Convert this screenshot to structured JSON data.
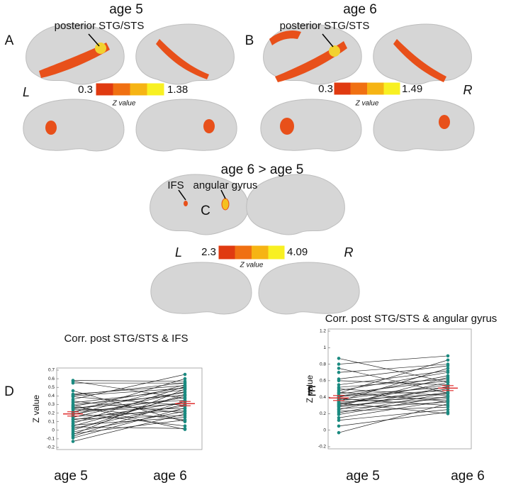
{
  "panel_a": {
    "letter": "A",
    "title": "age 5",
    "region": "posterior STG/STS",
    "hemi_left": "L",
    "colorbar": {
      "min": 0.3,
      "max": 1.38,
      "label": "Z value"
    }
  },
  "panel_b": {
    "letter": "B",
    "title": "age 6",
    "region": "posterior STG/STS",
    "hemi_right": "R",
    "colorbar": {
      "min": 0.3,
      "max": 1.49,
      "label": "Z value"
    }
  },
  "panel_c": {
    "letter": "C",
    "title": "age 6 > age 5",
    "regions": [
      "IFS",
      "angular gyrus"
    ],
    "hemi_left": "L",
    "hemi_right": "R",
    "colorbar": {
      "min": 2.3,
      "max": 4.09,
      "label": "Z value"
    }
  },
  "chart_data": [
    {
      "type": "paired",
      "letter": "D",
      "title": "Corr. post STG/STS & IFS",
      "ylabel": "Z value",
      "categories": [
        "age 5",
        "age 6"
      ],
      "ylim": [
        -0.2,
        0.7
      ],
      "yticks": [
        -0.2,
        -0.1,
        0,
        0.1,
        0.2,
        0.3,
        0.4,
        0.5,
        0.6,
        0.7
      ],
      "point_color": "#1b8a80",
      "line_color": "#222222",
      "mean_color": "#e03030",
      "subjects": [
        [
          0.58,
          0.57
        ],
        [
          0.57,
          0.37
        ],
        [
          0.55,
          0.55
        ],
        [
          0.46,
          0.1
        ],
        [
          0.42,
          0.52
        ],
        [
          0.41,
          0.55
        ],
        [
          0.4,
          0.49
        ],
        [
          0.39,
          0.29
        ],
        [
          0.36,
          0.65
        ],
        [
          0.34,
          0.2
        ],
        [
          0.32,
          0.47
        ],
        [
          0.3,
          0.41
        ],
        [
          0.28,
          0.5
        ],
        [
          0.27,
          0.12
        ],
        [
          0.26,
          0.35
        ],
        [
          0.25,
          0.44
        ],
        [
          0.24,
          0.25
        ],
        [
          0.22,
          0.31
        ],
        [
          0.2,
          0.05
        ],
        [
          0.19,
          0.38
        ],
        [
          0.18,
          0.53
        ],
        [
          0.16,
          0.23
        ],
        [
          0.15,
          0.45
        ],
        [
          0.13,
          0.17
        ],
        [
          0.12,
          0.33
        ],
        [
          0.1,
          0.28
        ],
        [
          0.08,
          0.51
        ],
        [
          0.06,
          0.15
        ],
        [
          0.05,
          0.4
        ],
        [
          0.04,
          0.02
        ],
        [
          0.02,
          0.3
        ],
        [
          0,
          0.42
        ],
        [
          -0.02,
          0.22
        ],
        [
          -0.04,
          0.12
        ],
        [
          -0.05,
          0.48
        ],
        [
          -0.07,
          0.34
        ],
        [
          -0.09,
          0.26
        ],
        [
          -0.13,
          0.19
        ],
        [
          0.29,
          0.01
        ],
        [
          0.21,
          0.6
        ]
      ],
      "means": [
        0.19,
        0.31
      ],
      "errors": [
        0.025,
        0.025
      ]
    },
    {
      "type": "paired",
      "letter": "E",
      "title": "Corr. post STG/STS & angular gyrus",
      "ylabel": "Z value",
      "categories": [
        "age 5",
        "age 6"
      ],
      "ylim": [
        -0.2,
        1.2
      ],
      "yticks": [
        -0.2,
        0,
        0.2,
        0.4,
        0.6,
        0.8,
        1,
        1.2
      ],
      "point_color": "#1b8a80",
      "line_color": "#222222",
      "mean_color": "#e03030",
      "subjects": [
        [
          0.87,
          0.58
        ],
        [
          0.8,
          0.9
        ],
        [
          0.75,
          0.45
        ],
        [
          0.7,
          0.8
        ],
        [
          0.62,
          0.78
        ],
        [
          0.6,
          0.55
        ],
        [
          0.55,
          0.72
        ],
        [
          0.52,
          0.62
        ],
        [
          0.5,
          0.42
        ],
        [
          0.48,
          0.7
        ],
        [
          0.46,
          0.35
        ],
        [
          0.44,
          0.6
        ],
        [
          0.42,
          0.52
        ],
        [
          0.41,
          0.48
        ],
        [
          0.4,
          0.66
        ],
        [
          0.38,
          0.3
        ],
        [
          0.37,
          0.55
        ],
        [
          0.36,
          0.44
        ],
        [
          0.35,
          0.75
        ],
        [
          0.34,
          0.4
        ],
        [
          0.32,
          0.5
        ],
        [
          0.31,
          0.58
        ],
        [
          0.3,
          0.38
        ],
        [
          0.29,
          0.64
        ],
        [
          0.28,
          0.46
        ],
        [
          0.26,
          0.34
        ],
        [
          0.25,
          0.53
        ],
        [
          0.23,
          0.28
        ],
        [
          0.21,
          0.45
        ],
        [
          0.19,
          0.41
        ],
        [
          0.15,
          0.36
        ],
        [
          0.12,
          0.25
        ],
        [
          0.05,
          0.22
        ],
        [
          -0.03,
          0.32
        ],
        [
          0.45,
          0.85
        ],
        [
          0.33,
          0.2
        ]
      ],
      "means": [
        0.39,
        0.51
      ],
      "errors": [
        0.03,
        0.03
      ]
    }
  ]
}
